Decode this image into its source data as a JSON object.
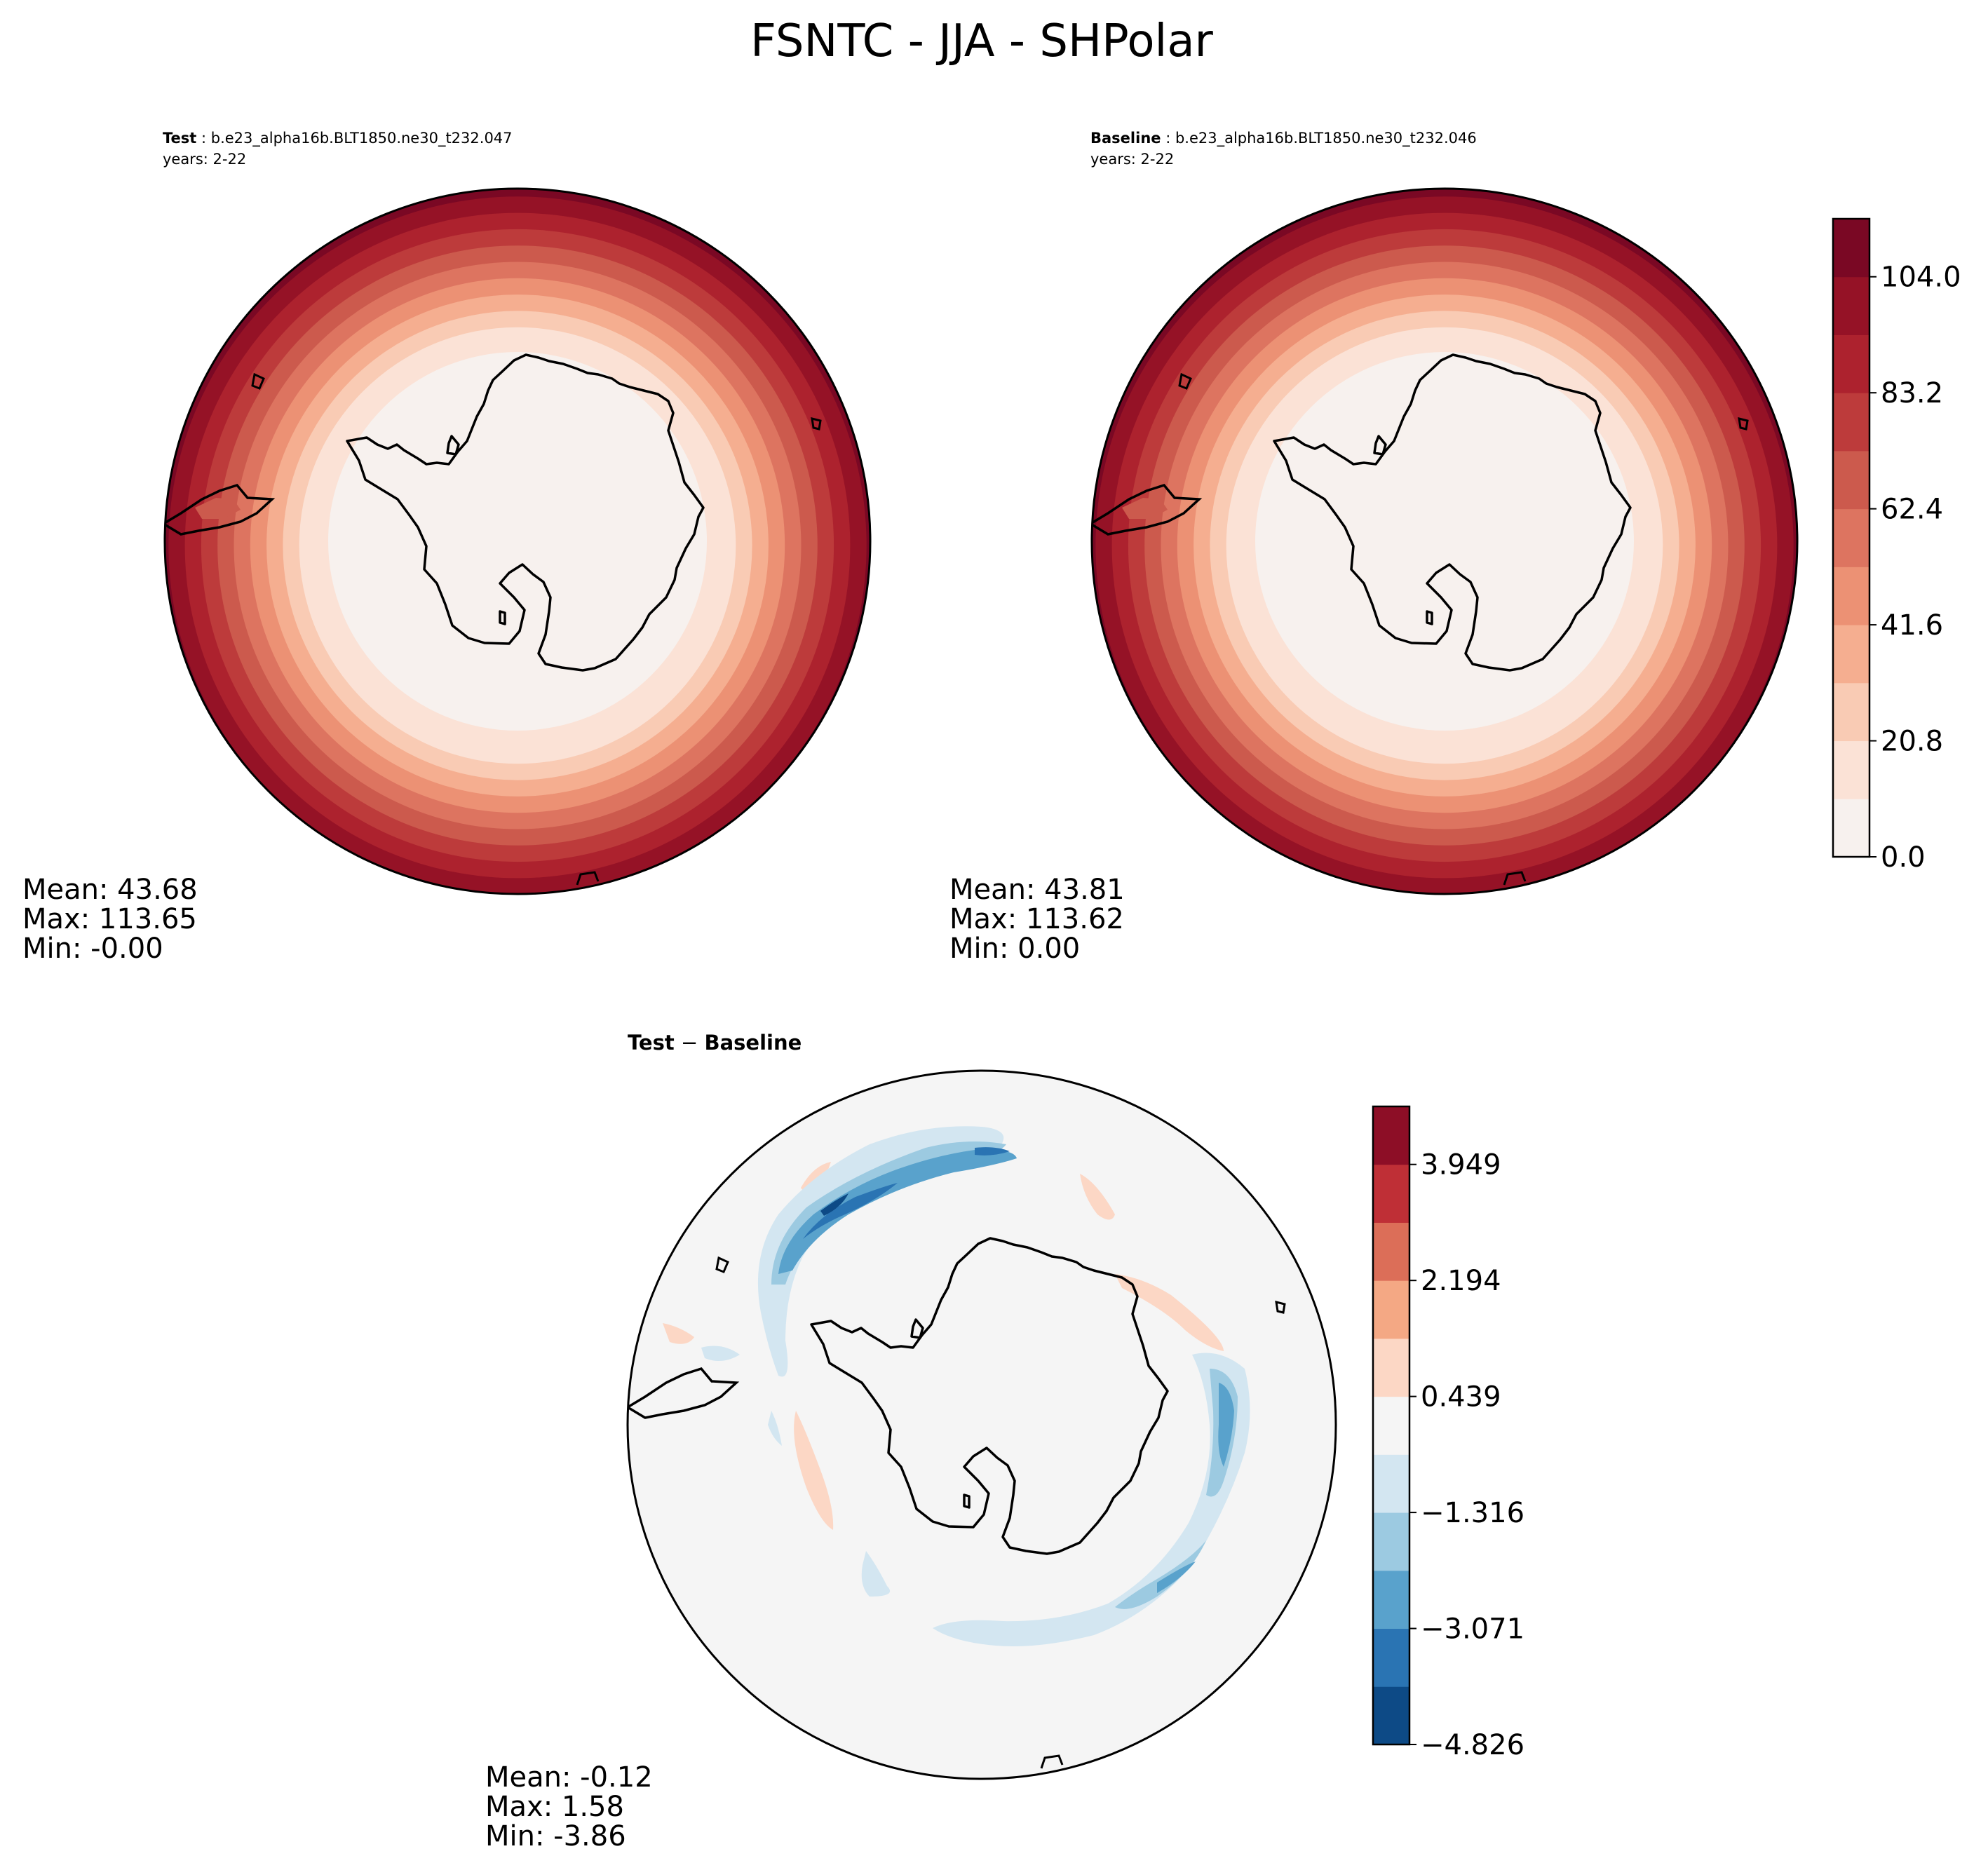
{
  "figure": {
    "title": "FSNTC - JJA - SHPolar"
  },
  "panels": {
    "test": {
      "label_bold": "Test",
      "label_rest": " : b.e23_alpha16b.BLT1850.ne30_t232.047",
      "years": "years: 2-22",
      "stats": {
        "mean": "Mean: 43.68",
        "max": "Max: 113.65",
        "min": "Min: -0.00"
      }
    },
    "baseline": {
      "label_bold": "Baseline",
      "label_rest": " : b.e23_alpha16b.BLT1850.ne30_t232.046",
      "years": "years: 2-22",
      "stats": {
        "mean": "Mean: 43.81",
        "max": "Max: 113.62",
        "min": "Min:  0.00"
      }
    },
    "diff": {
      "label_test": "Test",
      "label_sep": " − ",
      "label_base": "Baseline",
      "stats": {
        "mean": "Mean: -0.12",
        "max": "Max:  1.58",
        "min": "Min: -3.86"
      }
    }
  },
  "colorbars": {
    "field": {
      "ticks": [
        "0.0",
        "20.8",
        "41.6",
        "62.4",
        "83.2",
        "104.0"
      ],
      "colors": [
        "#f7f1ee",
        "#fbe2d6",
        "#f9cbb4",
        "#f5ae90",
        "#ec9174",
        "#dd7460",
        "#cc5a4d",
        "#bd3b3b",
        "#ad222e",
        "#951226",
        "#7a0824"
      ]
    },
    "diff": {
      "ticks": [
        "−4.826",
        "−3.071",
        "−1.316",
        "0.439",
        "2.194",
        "3.949"
      ],
      "colors": [
        "#0d4a86",
        "#2a74b3",
        "#59a2cc",
        "#9ccae1",
        "#d3e6f1",
        "#f5f5f5",
        "#fcd7c5",
        "#f4a884",
        "#dc6e58",
        "#bf2f36",
        "#8d0e26"
      ]
    }
  }
}
